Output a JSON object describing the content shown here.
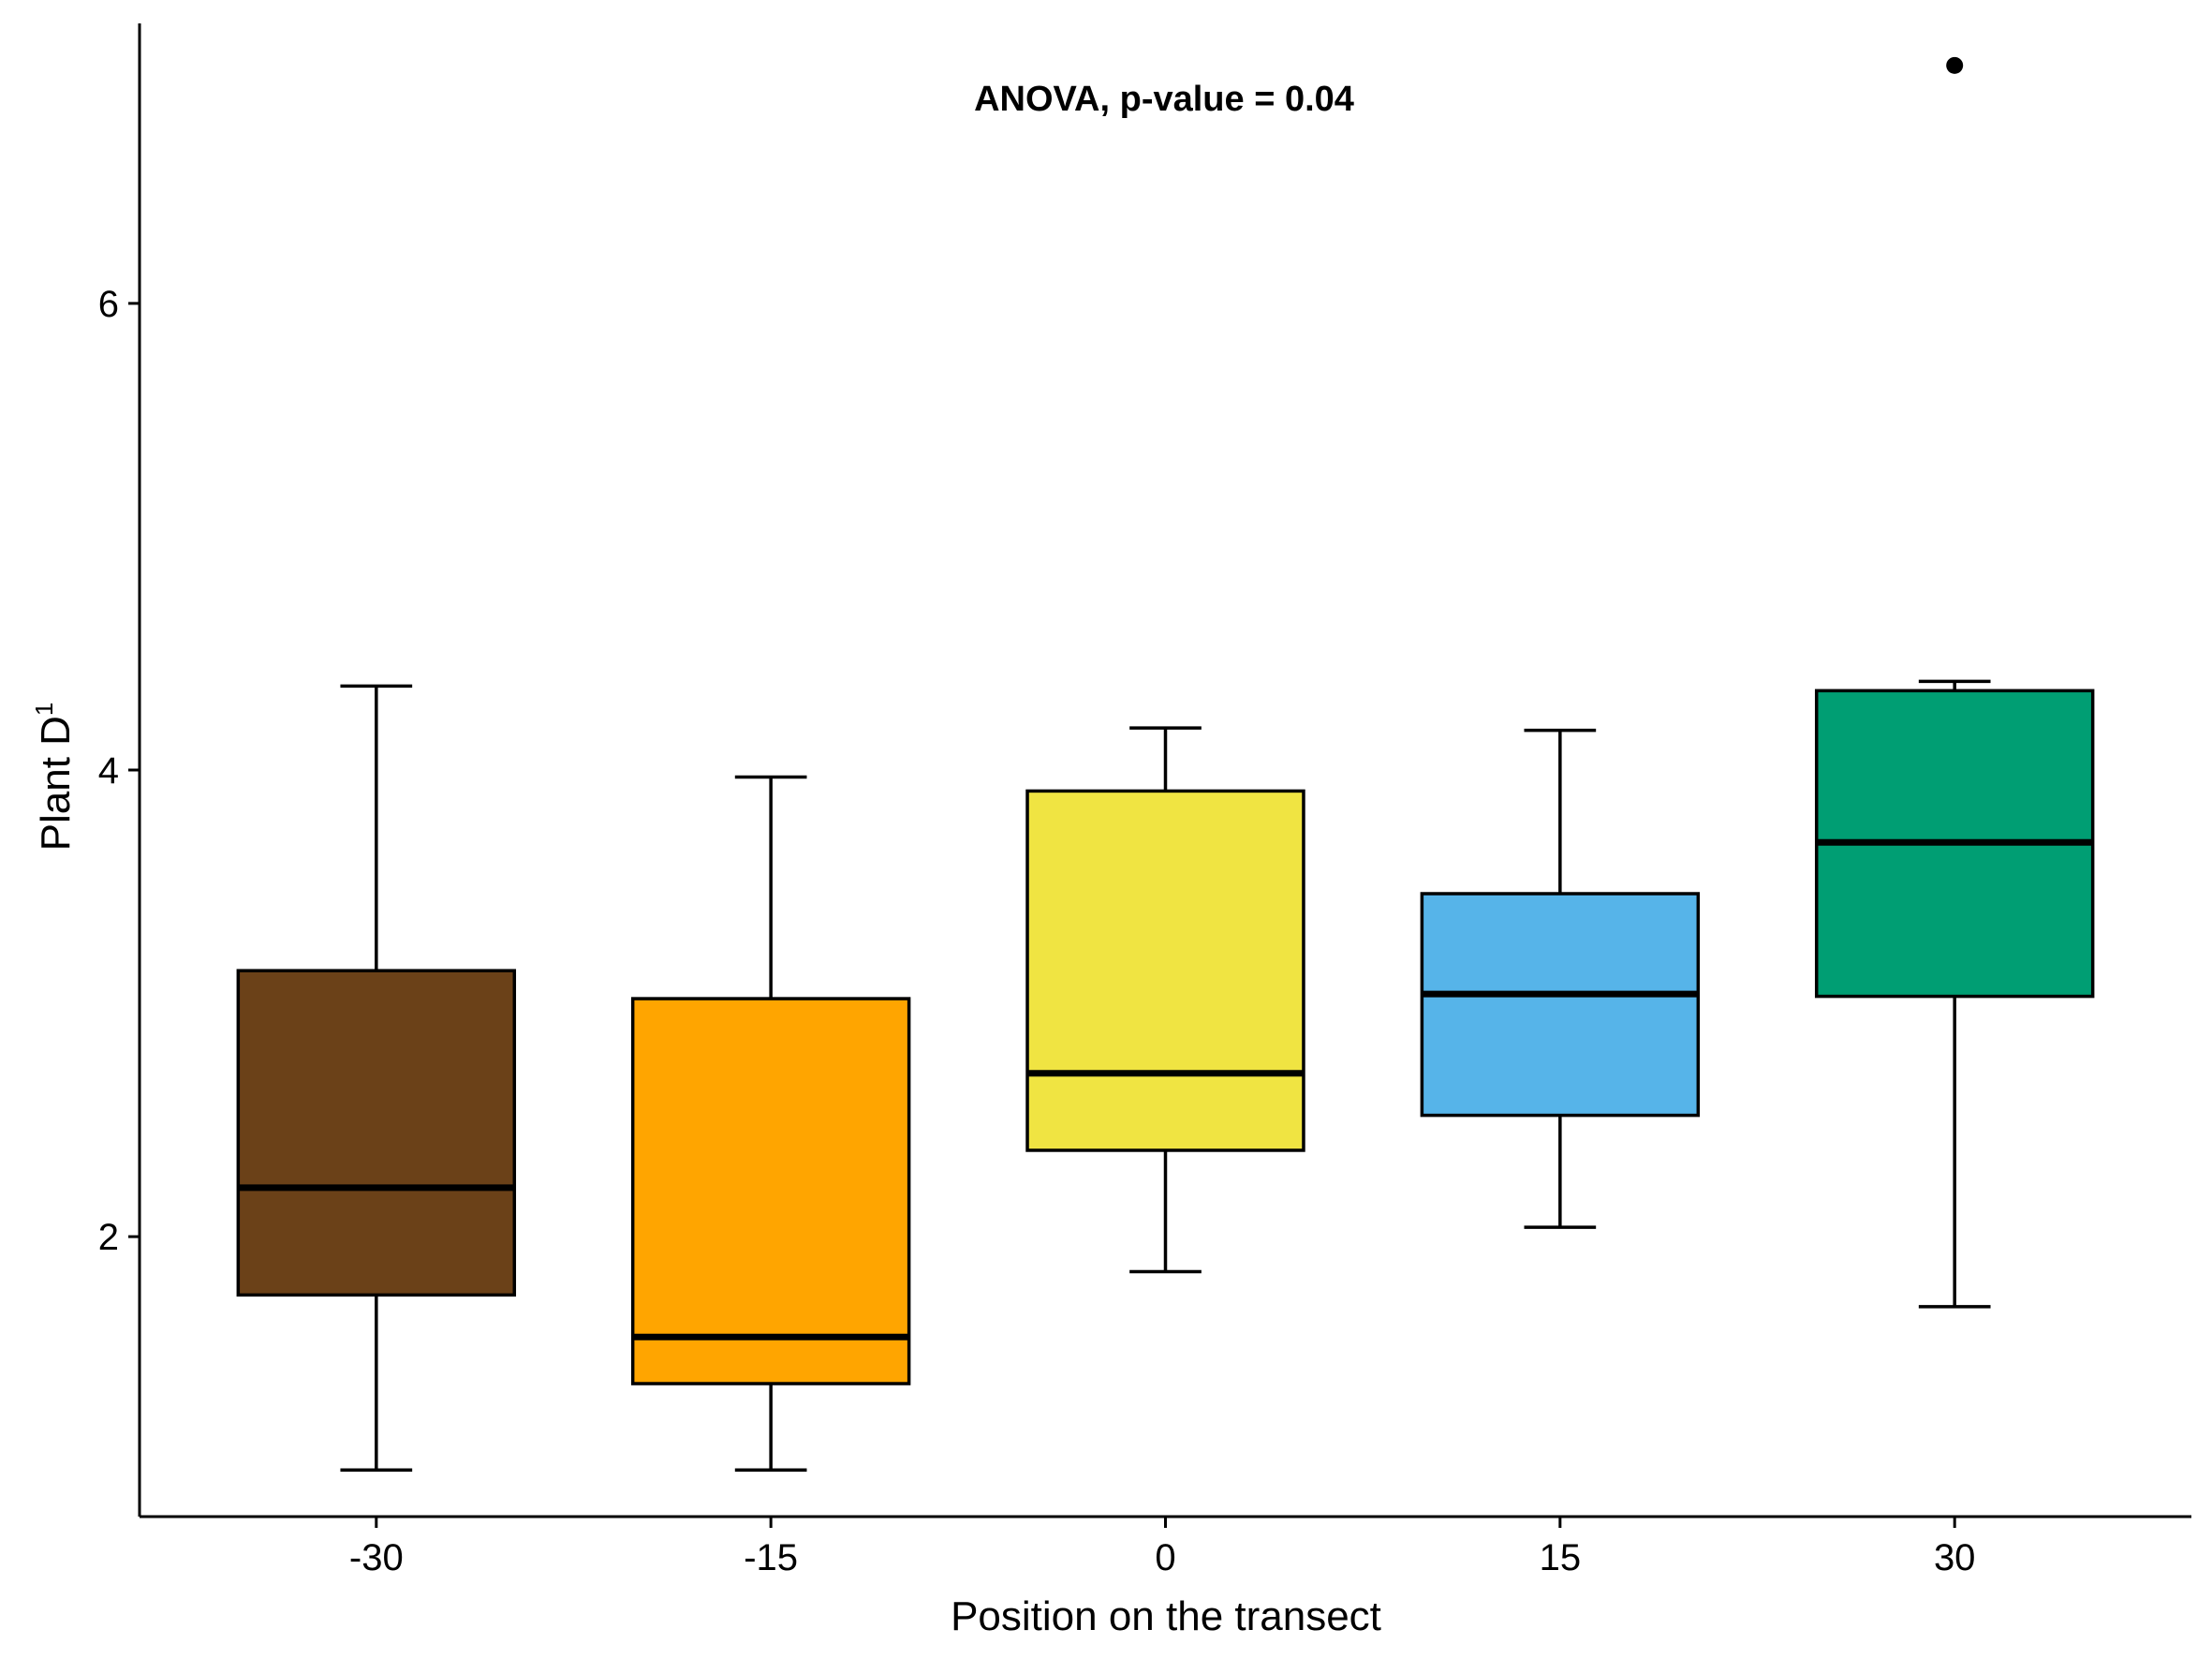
{
  "chart_data": {
    "type": "boxplot",
    "xlabel": "Position on the transect",
    "ylabel": "Plant D",
    "ylabel_superscript": "1",
    "annotation": "ANOVA, p-value = 0.04",
    "ylim": [
      0.8,
      7.2
    ],
    "yticks": [
      2,
      4,
      6
    ],
    "grid": false,
    "legend": "none",
    "categories": [
      "-30",
      "-15",
      "0",
      "15",
      "30"
    ],
    "boxes": [
      {
        "category": "-30",
        "whisker_low": 1.0,
        "q1": 1.75,
        "median": 2.21,
        "q3": 3.14,
        "whisker_high": 4.36,
        "outliers": [],
        "color": "#6B4118"
      },
      {
        "category": "-15",
        "whisker_low": 1.0,
        "q1": 1.37,
        "median": 1.57,
        "q3": 3.02,
        "whisker_high": 3.97,
        "outliers": [],
        "color": "#FFA500"
      },
      {
        "category": "0",
        "whisker_low": 1.85,
        "q1": 2.37,
        "median": 2.7,
        "q3": 3.91,
        "whisker_high": 4.18,
        "outliers": [],
        "color": "#F0E442"
      },
      {
        "category": "15",
        "whisker_low": 2.04,
        "q1": 2.52,
        "median": 3.04,
        "q3": 3.47,
        "whisker_high": 4.17,
        "outliers": [],
        "color": "#56B4E9"
      },
      {
        "category": "30",
        "whisker_low": 1.7,
        "q1": 3.03,
        "median": 3.69,
        "q3": 4.34,
        "whisker_high": 4.38,
        "outliers": [
          7.02
        ],
        "color": "#009E73"
      }
    ]
  }
}
